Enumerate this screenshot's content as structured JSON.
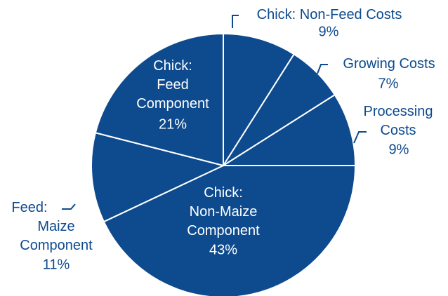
{
  "chart_data": {
    "type": "pie",
    "categories": [
      "Chick: Non-Feed Costs",
      "Growing Costs",
      "Processing Costs",
      "Chick: Non-Maize Component",
      "Feed: Maize Component",
      "Chick: Feed Component"
    ],
    "values": [
      9,
      7,
      9,
      43,
      11,
      21
    ],
    "value_labels": [
      "9%",
      "7%",
      "9%",
      "43%",
      "11%",
      "21%"
    ],
    "color": "#0d4a8e"
  }
}
